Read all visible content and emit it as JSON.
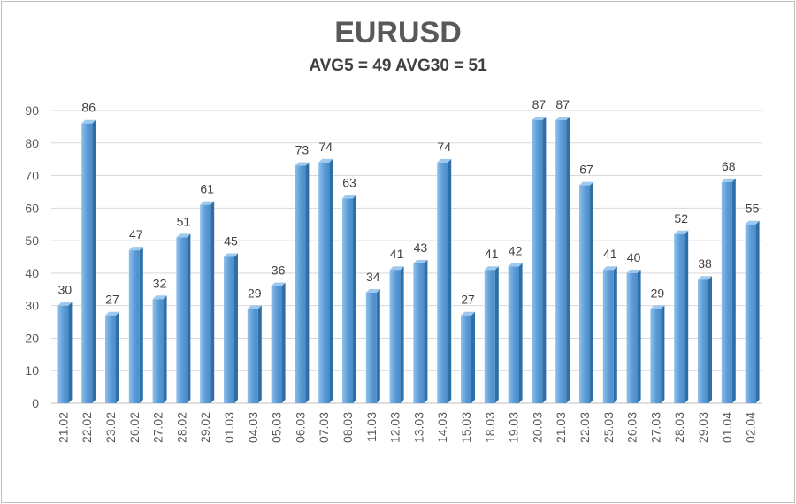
{
  "chart_data": {
    "type": "bar",
    "title": "EURUSD",
    "subtitle": "AVG5 = 49 AVG30 = 51",
    "categories": [
      "21.02",
      "22.02",
      "23.02",
      "26.02",
      "27.02",
      "28.02",
      "29.02",
      "01.03",
      "04.03",
      "05.03",
      "06.03",
      "07.03",
      "08.03",
      "11.03",
      "12.03",
      "13.03",
      "14.03",
      "15.03",
      "18.03",
      "19.03",
      "20.03",
      "21.03",
      "22.03",
      "25.03",
      "26.03",
      "27.03",
      "28.03",
      "29.03",
      "01.04",
      "02.04"
    ],
    "values": [
      30,
      86,
      27,
      47,
      32,
      51,
      61,
      45,
      29,
      36,
      73,
      74,
      63,
      34,
      41,
      43,
      74,
      27,
      41,
      42,
      87,
      87,
      67,
      41,
      40,
      29,
      52,
      38,
      68,
      55
    ],
    "ylim": [
      0,
      90
    ],
    "yticks": [
      0,
      10,
      20,
      30,
      40,
      50,
      60,
      70,
      80,
      90
    ],
    "grid": true,
    "legend": "none",
    "colors": {
      "bar_front": "#5b9bd5",
      "bar_light": "#8fc0ec",
      "bar_dark": "#2e6fa8",
      "bar_top": "#9ec9ef",
      "grid": "#d9d9d9",
      "axis": "#bfbfbf"
    }
  }
}
